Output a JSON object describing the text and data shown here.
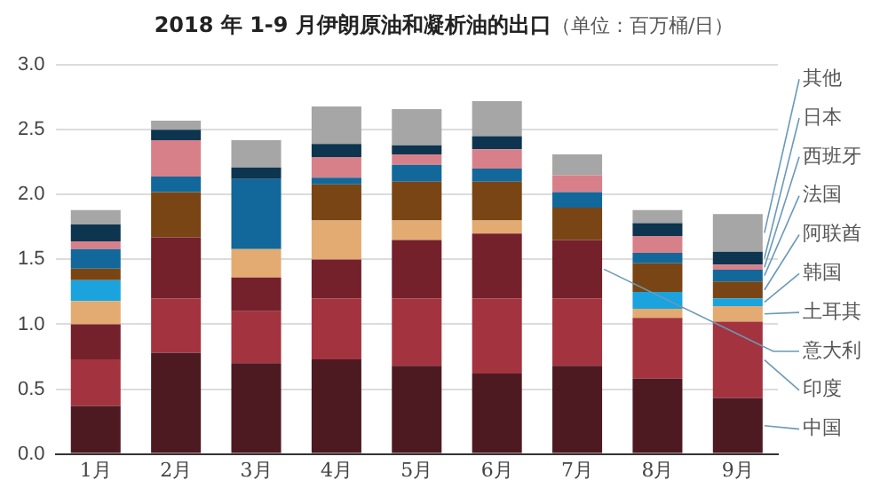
{
  "chart_data": {
    "type": "bar",
    "stacked": true,
    "title": "2018 年 1-9 月伊朗原油和凝析油的出口",
    "subtitle": "（单位：百万桶/日）",
    "categories": [
      "1月",
      "2月",
      "3月",
      "4月",
      "5月",
      "6月",
      "7月",
      "8月",
      "9月"
    ],
    "series": [
      {
        "name": "中国",
        "color": "#4d1a22",
        "values": [
          0.37,
          0.78,
          0.7,
          0.73,
          0.68,
          0.62,
          0.68,
          0.58,
          0.43
        ]
      },
      {
        "name": "印度",
        "color": "#a3343f",
        "values": [
          0.36,
          0.42,
          0.4,
          0.47,
          0.52,
          0.58,
          0.52,
          0.47,
          0.59
        ]
      },
      {
        "name": "意大利",
        "color": "#74212c",
        "values": [
          0.27,
          0.47,
          0.26,
          0.3,
          0.45,
          0.5,
          0.45,
          0,
          0
        ]
      },
      {
        "name": "土耳其",
        "color": "#e3ab72",
        "values": [
          0.18,
          0,
          0.22,
          0.3,
          0.15,
          0.1,
          0,
          0.07,
          0.12
        ]
      },
      {
        "name": "韩国",
        "color": "#1aa3dd",
        "values": [
          0.16,
          0,
          0,
          0,
          0,
          0,
          0,
          0.13,
          0.06
        ]
      },
      {
        "name": "阿联酋",
        "color": "#7a4514",
        "values": [
          0.09,
          0.35,
          0,
          0.28,
          0.3,
          0.3,
          0.25,
          0.22,
          0.13
        ]
      },
      {
        "name": "法国",
        "color": "#12689a",
        "values": [
          0.15,
          0.12,
          0.54,
          0.05,
          0.13,
          0.1,
          0.12,
          0.08,
          0.09
        ]
      },
      {
        "name": "西班牙",
        "color": "#d8808a",
        "values": [
          0.06,
          0.28,
          0,
          0.16,
          0.08,
          0.15,
          0.13,
          0.13,
          0.04
        ]
      },
      {
        "name": "日本",
        "color": "#0d3550",
        "values": [
          0.13,
          0.08,
          0.09,
          0.1,
          0.07,
          0.1,
          0,
          0.1,
          0.1
        ]
      },
      {
        "name": "其他",
        "color": "#a6a6a6",
        "values": [
          0.11,
          0.07,
          0.21,
          0.29,
          0.28,
          0.27,
          0.16,
          0.1,
          0.29
        ]
      }
    ],
    "ylim": [
      0,
      3
    ],
    "yticks": [
      {
        "value": 0,
        "label": "0.0"
      },
      {
        "value": 0.5,
        "label": "0.5"
      },
      {
        "value": 1,
        "label": "1.0"
      },
      {
        "value": 1.5,
        "label": "1.5"
      },
      {
        "value": 2,
        "label": "2.0"
      },
      {
        "value": 2.5,
        "label": "2.5"
      },
      {
        "value": 3,
        "label": "3.0"
      }
    ],
    "grid": "y",
    "legend": false
  }
}
